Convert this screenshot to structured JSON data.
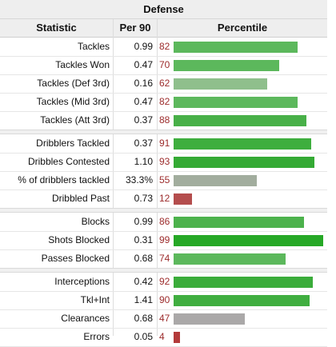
{
  "caption": "Defense",
  "headers": {
    "statistic": "Statistic",
    "per90": "Per 90",
    "percentile": "Percentile"
  },
  "groups": [
    {
      "rows": [
        {
          "label": "Tackles",
          "per90": "0.99",
          "percentile": 82,
          "color": "#5cb85c"
        },
        {
          "label": "Tackles Won",
          "per90": "0.47",
          "percentile": 70,
          "color": "#5cb85c"
        },
        {
          "label": "Tackles (Def 3rd)",
          "per90": "0.16",
          "percentile": 62,
          "color": "#8fbf8c"
        },
        {
          "label": "Tackles (Mid 3rd)",
          "per90": "0.47",
          "percentile": 82,
          "color": "#5cb85c"
        },
        {
          "label": "Tackles (Att 3rd)",
          "per90": "0.37",
          "percentile": 88,
          "color": "#48b048"
        }
      ]
    },
    {
      "rows": [
        {
          "label": "Dribblers Tackled",
          "per90": "0.37",
          "percentile": 91,
          "color": "#3eae3e"
        },
        {
          "label": "Dribbles Contested",
          "per90": "1.10",
          "percentile": 93,
          "color": "#34aa34"
        },
        {
          "label": "% of dribblers tackled",
          "per90": "33.3%",
          "percentile": 55,
          "color": "#a2ad9e"
        },
        {
          "label": "Dribbled Past",
          "per90": "0.73",
          "percentile": 12,
          "color": "#b44d4d"
        }
      ]
    },
    {
      "rows": [
        {
          "label": "Blocks",
          "per90": "0.99",
          "percentile": 86,
          "color": "#4cb24c"
        },
        {
          "label": "Shots Blocked",
          "per90": "0.31",
          "percentile": 99,
          "color": "#26a826"
        },
        {
          "label": "Passes Blocked",
          "per90": "0.68",
          "percentile": 74,
          "color": "#5cb85c"
        }
      ]
    },
    {
      "rows": [
        {
          "label": "Interceptions",
          "per90": "0.42",
          "percentile": 92,
          "color": "#3aac3a"
        },
        {
          "label": "Tkl+Int",
          "per90": "1.41",
          "percentile": 90,
          "color": "#40ae40"
        },
        {
          "label": "Clearances",
          "per90": "0.68",
          "percentile": 47,
          "color": "#aaa8a8"
        },
        {
          "label": "Errors",
          "per90": "0.05",
          "percentile": 4,
          "color": "#b33a3a"
        }
      ]
    }
  ]
}
